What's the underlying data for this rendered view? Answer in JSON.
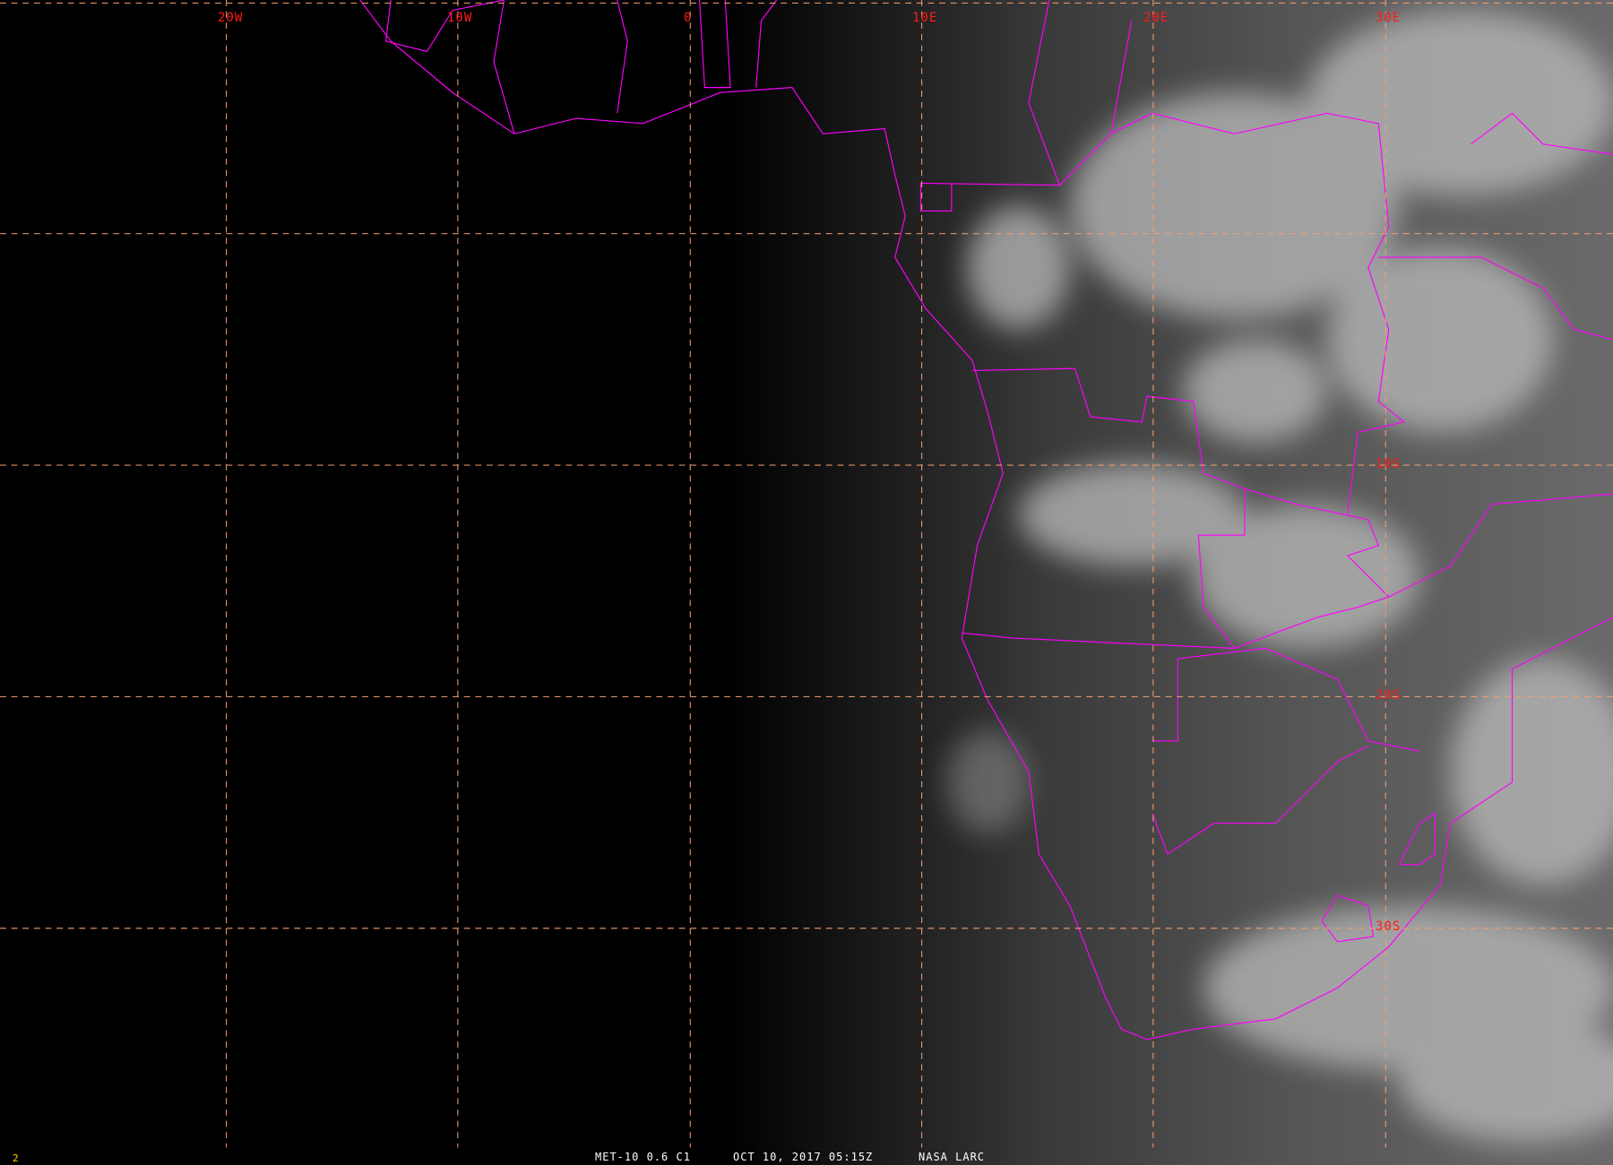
{
  "image": {
    "satellite": "MET-10 0.6 C1",
    "datetime": "OCT 10, 2017 05:15Z",
    "credit": "NASA LARC",
    "frame_number": "2"
  },
  "grid": {
    "longitude_labels": [
      "20W",
      "10W",
      "0",
      "10E",
      "20E",
      "30E"
    ],
    "latitude_labels": [
      "10S",
      "20S",
      "30S"
    ]
  },
  "colors": {
    "grid": "#f4a070",
    "borders": "#ff00ff",
    "labels": "#ff1a1a",
    "caption": "#ffffff",
    "frame_number": "#ffd700"
  }
}
